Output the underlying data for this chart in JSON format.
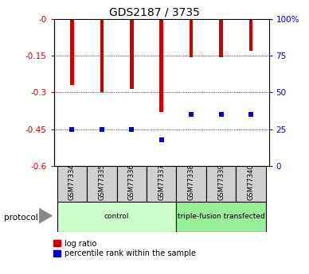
{
  "title": "GDS2187 / 3735",
  "samples": [
    "GSM77334",
    "GSM77335",
    "GSM77336",
    "GSM77337",
    "GSM77338",
    "GSM77339",
    "GSM77340"
  ],
  "log_ratio": [
    -0.27,
    -0.3,
    -0.285,
    -0.38,
    -0.155,
    -0.155,
    -0.13
  ],
  "percentile_rank": [
    0.25,
    0.25,
    0.25,
    0.175,
    0.35,
    0.35,
    0.35
  ],
  "ylim_left": [
    -0.6,
    0.0
  ],
  "yticks_left": [
    0.0,
    -0.15,
    -0.3,
    -0.45,
    -0.6
  ],
  "ytick_labels_left": [
    "-0",
    "-0.15",
    "-0.3",
    "-0.45",
    "-0.6"
  ],
  "yticks_right": [
    0.0,
    0.25,
    0.5,
    0.75,
    1.0
  ],
  "ytick_labels_right": [
    "0",
    "25",
    "50",
    "75",
    "100%"
  ],
  "bar_color": "#cc0000",
  "percentile_color": "#0000cc",
  "bar_width": 0.12,
  "tick_label_color_left": "#cc0000",
  "tick_label_color_right": "#0000cc",
  "legend_items": [
    "log ratio",
    "percentile rank within the sample"
  ],
  "group_bounds": [
    [
      0,
      3,
      "control",
      "#ccffcc"
    ],
    [
      4,
      6,
      "triple-fusion transfected",
      "#99ee99"
    ]
  ]
}
